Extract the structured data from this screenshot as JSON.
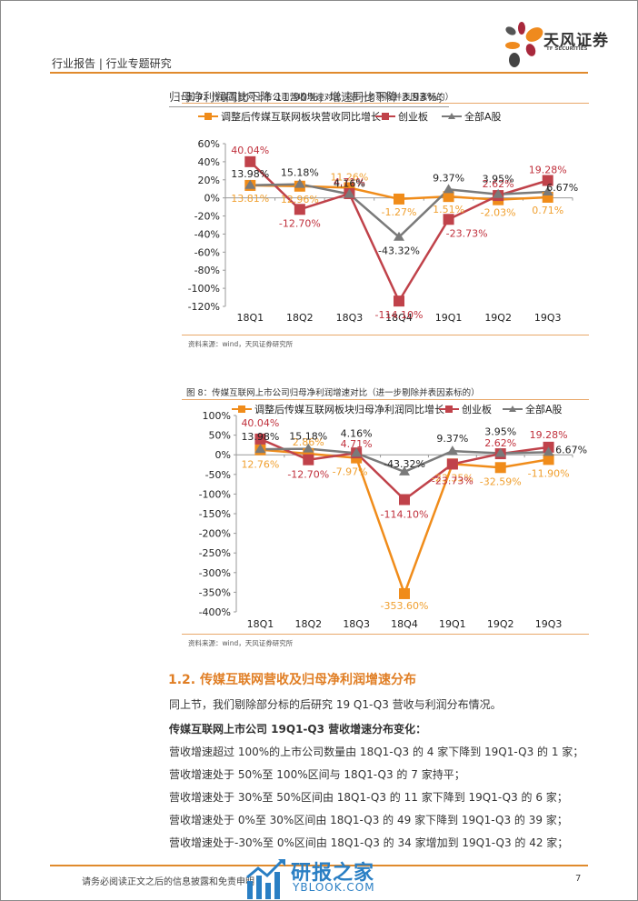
{
  "header": {
    "left_text": "行业报告 | 行业专题研究",
    "logo_cn": "天风证券",
    "logo_en": "TF SECURITIES"
  },
  "intro_line": "归母净利润同比下降 11.90%，增速同比下降 3.93%；",
  "figures": [
    {
      "title": "图 7：传媒互联网上市公司营收增速对比（进一步剔除并表因素标的）",
      "source": "资料来源：wind，天风证券研究所"
    },
    {
      "title": "图 8：传媒互联网上市公司归母净利润增速对比（进一步剔除并表因素标的）",
      "source": "资料来源：wind，天风证券研究所"
    }
  ],
  "chart_data": [
    {
      "type": "line",
      "title": "图 7：传媒互联网上市公司营收增速对比（进一步剔除并表因素标的）",
      "categories": [
        "18Q1",
        "18Q2",
        "18Q3",
        "18Q4",
        "19Q1",
        "19Q2",
        "19Q3"
      ],
      "ylim": [
        -120,
        60
      ],
      "yticks": [
        60,
        40,
        20,
        0,
        -20,
        -40,
        -60,
        -80,
        -100,
        -120
      ],
      "ytick_labels": [
        "60%",
        "40%",
        "20%",
        "0%",
        "-20%",
        "-40%",
        "-60%",
        "-80%",
        "-100%",
        "-120%"
      ],
      "legend": "top",
      "series": [
        {
          "name": "调整后传媒互联网板块营收同比增长",
          "color": "#f08c1a",
          "marker": "square",
          "values": [
            13.81,
            12.96,
            11.26,
            -1.27,
            1.51,
            -2.03,
            0.71
          ],
          "labels": [
            "13.81%",
            "12.96%",
            "11.26%",
            "-1.27%",
            "1.51%",
            "-2.03%",
            "0.71%"
          ]
        },
        {
          "name": "创业板",
          "color": "#c0424a",
          "marker": "square",
          "values": [
            40.04,
            -12.7,
            4.71,
            -114.1,
            -23.73,
            2.62,
            19.28
          ],
          "labels": [
            "40.04%",
            "-12.70%",
            "4.71%",
            "-114.10%",
            "-23.73%",
            "2.62%",
            "19.28%"
          ]
        },
        {
          "name": "全部A股",
          "color": "#7a7a7a",
          "marker": "triangle",
          "values": [
            13.98,
            15.18,
            4.16,
            -43.32,
            9.37,
            3.95,
            6.67
          ],
          "labels": [
            "13.98%",
            "15.18%",
            "4.16%",
            "-43.32%",
            "9.37%",
            "3.95%",
            "6.67%"
          ]
        }
      ]
    },
    {
      "type": "line",
      "title": "图 8：传媒互联网上市公司归母净利润增速对比（进一步剔除并表因素标的）",
      "categories": [
        "18Q1",
        "18Q2",
        "18Q3",
        "18Q4",
        "19Q1",
        "19Q2",
        "19Q3"
      ],
      "ylim": [
        -400,
        100
      ],
      "yticks": [
        100,
        50,
        0,
        -50,
        -100,
        -150,
        -200,
        -250,
        -300,
        -350,
        -400
      ],
      "ytick_labels": [
        "100%",
        "50%",
        "0%",
        "-50%",
        "-100%",
        "-150%",
        "-200%",
        "-250%",
        "-300%",
        "-350%",
        "-400%"
      ],
      "legend": "top",
      "series": [
        {
          "name": "调整后传媒互联网板块归母净利润同比增长",
          "color": "#f08c1a",
          "marker": "square",
          "values": [
            12.76,
            2.86,
            -7.97,
            -353.6,
            -23.35,
            -32.59,
            -11.9
          ],
          "labels": [
            "12.76%",
            "2.86%",
            "-7.97%",
            "-353.60%",
            "-23.35%",
            "-32.59%",
            "-11.90%"
          ]
        },
        {
          "name": "创业板",
          "color": "#c0424a",
          "marker": "square",
          "values": [
            40.04,
            -12.7,
            4.71,
            -114.1,
            -23.73,
            2.62,
            19.28
          ],
          "labels": [
            "40.04%",
            "-12.70%",
            "4.71%",
            "-114.10%",
            "-23.73%",
            "2.62%",
            "19.28%"
          ]
        },
        {
          "name": "全部A股",
          "color": "#7a7a7a",
          "marker": "triangle",
          "values": [
            13.98,
            15.18,
            4.16,
            -43.32,
            9.37,
            3.95,
            6.67
          ],
          "labels": [
            "13.98%",
            "15.18%",
            "4.16%",
            "-43.32%",
            "9.37%",
            "3.95%",
            "6.67%"
          ]
        }
      ]
    }
  ],
  "section": {
    "title": "1.2. 传媒互联网营收及归母净利润增速分布",
    "paragraphs": [
      "同上节，我们剔除部分标的后研究 19 Q1-Q3 营收与利润分布情况。",
      "传媒互联网上市公司 19Q1-Q3 营收增速分布变化：",
      "营收增速超过 100%的上市公司数量由 18Q1-Q3 的 4 家下降到 19Q1-Q3 的 1 家；",
      "营收增速处于 50%至 100%区间与 18Q1-Q3 的 7 家持平；",
      "营收增速处于 30%至 50%区间由 18Q1-Q3 的 11 家下降到 19Q1-Q3 的 6 家；",
      "营收增速处于 0%至 30%区间由 18Q1-Q3 的 49 家下降到 19Q1-Q3 的 39 家；",
      "营收增速处于-30%至 0%区间由 18Q1-Q3 的 34 家增加到 19Q1-Q3 的 42 家；"
    ]
  },
  "footer": {
    "disclaimer": "请务必阅读正文之后的信息披露和免责申明",
    "page_number": "7"
  },
  "watermark": {
    "cn": "研报之家",
    "en": "YBLOOK.COM"
  }
}
